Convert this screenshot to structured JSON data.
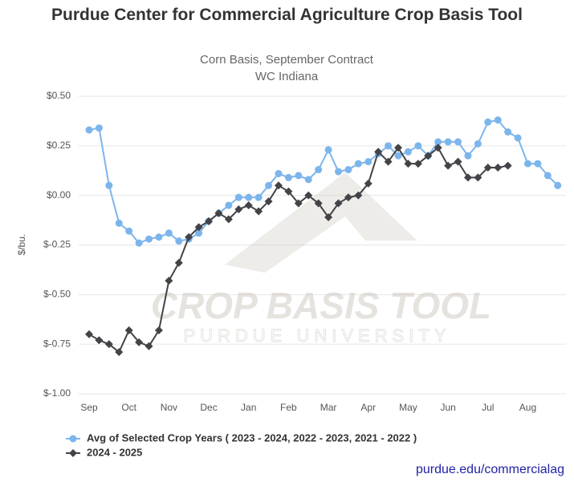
{
  "chart_data": {
    "type": "line",
    "title": "Purdue Center for Commercial Agriculture Crop Basis Tool",
    "subtitle": [
      "Corn Basis, September Contract",
      "WC Indiana"
    ],
    "y_label": "$/bu.",
    "watermark": [
      "CROP BASIS TOOL",
      "PURDUE UNIVERSITY"
    ],
    "footer": "purdue.edu/commercialag",
    "categories": [
      "Sep",
      null,
      null,
      null,
      "Oct",
      null,
      null,
      null,
      "Nov",
      null,
      null,
      null,
      "Dec",
      null,
      null,
      null,
      "Jan",
      null,
      null,
      null,
      "Feb",
      null,
      null,
      null,
      "Mar",
      null,
      null,
      null,
      "Apr",
      null,
      null,
      null,
      "May",
      null,
      null,
      null,
      "Jun",
      null,
      null,
      null,
      "Jul",
      null,
      null,
      null,
      "Aug",
      null,
      null,
      null
    ],
    "ylim": [
      -1.0,
      0.5
    ],
    "yticks": [
      {
        "value": -1.0,
        "label": "$-1.00"
      },
      {
        "value": -0.75,
        "label": "$-0.75"
      },
      {
        "value": -0.5,
        "label": "$-0.50"
      },
      {
        "value": -0.25,
        "label": "$-0.25"
      },
      {
        "value": 0,
        "label": "$0.00"
      },
      {
        "value": 0.25,
        "label": "$0.25"
      },
      {
        "value": 0.5,
        "label": "$0.50"
      }
    ],
    "grid": true,
    "legend": "bottom",
    "series": [
      {
        "name": "Avg of Selected Crop Years ( 2023 - 2024, 2022 - 2023, 2021 - 2022 )",
        "color": "#7cb5ec",
        "marker": "circle",
        "values": [
          0.33,
          0.34,
          0.05,
          -0.14,
          -0.18,
          -0.24,
          -0.22,
          -0.21,
          -0.19,
          -0.23,
          -0.22,
          -0.19,
          -0.13,
          -0.09,
          -0.05,
          -0.01,
          -0.01,
          -0.01,
          0.05,
          0.11,
          0.09,
          0.1,
          0.08,
          0.13,
          0.23,
          0.12,
          0.13,
          0.16,
          0.17,
          0.21,
          0.25,
          0.2,
          0.22,
          0.25,
          0.2,
          0.27,
          0.27,
          0.27,
          0.2,
          0.26,
          0.37,
          0.38,
          0.32,
          0.29,
          0.16,
          0.16,
          0.1,
          0.05
        ]
      },
      {
        "name": "2024 - 2025",
        "color": "#434348",
        "marker": "diamond",
        "values": [
          -0.7,
          -0.73,
          -0.75,
          -0.79,
          -0.68,
          -0.74,
          -0.76,
          -0.68,
          -0.43,
          -0.34,
          -0.21,
          -0.16,
          -0.13,
          -0.09,
          -0.12,
          -0.07,
          -0.05,
          -0.08,
          -0.03,
          0.05,
          0.02,
          -0.04,
          0.0,
          -0.04,
          -0.11,
          -0.04,
          -0.01,
          0.0,
          0.06,
          0.22,
          0.17,
          0.24,
          0.16,
          0.16,
          0.2,
          0.24,
          0.15,
          0.17,
          0.09,
          0.09,
          0.14,
          0.14,
          0.15,
          null,
          null,
          null,
          null,
          null
        ]
      }
    ]
  }
}
